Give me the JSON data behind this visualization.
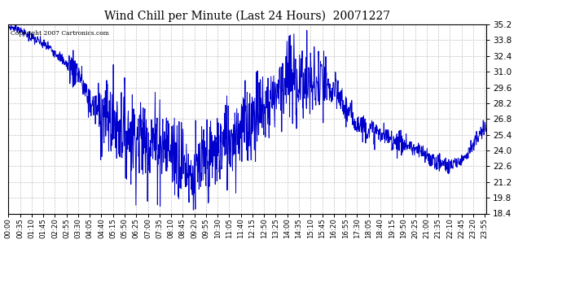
{
  "title": "Wind Chill per Minute (Last 24 Hours)  20071227",
  "copyright_text": "Copyright 2007 Cartronics.com",
  "line_color": "#0000CC",
  "background_color": "#ffffff",
  "grid_color": "#bbbbbb",
  "ylim": [
    18.4,
    35.2
  ],
  "yticks": [
    18.4,
    19.8,
    21.2,
    22.6,
    24.0,
    25.4,
    26.8,
    28.2,
    29.6,
    31.0,
    32.4,
    33.8,
    35.2
  ],
  "total_minutes": 1440,
  "xtick_interval": 35,
  "x_labels": [
    "00:00",
    "00:35",
    "01:10",
    "01:45",
    "02:20",
    "02:55",
    "03:30",
    "04:05",
    "04:40",
    "05:15",
    "05:50",
    "06:25",
    "07:00",
    "07:35",
    "08:10",
    "08:45",
    "09:20",
    "09:55",
    "10:30",
    "11:05",
    "11:40",
    "12:15",
    "12:50",
    "13:25",
    "14:00",
    "14:35",
    "15:10",
    "15:45",
    "16:20",
    "16:55",
    "17:30",
    "18:05",
    "18:40",
    "19:15",
    "19:50",
    "20:25",
    "21:00",
    "21:35",
    "22:10",
    "22:45",
    "23:20",
    "23:55"
  ]
}
